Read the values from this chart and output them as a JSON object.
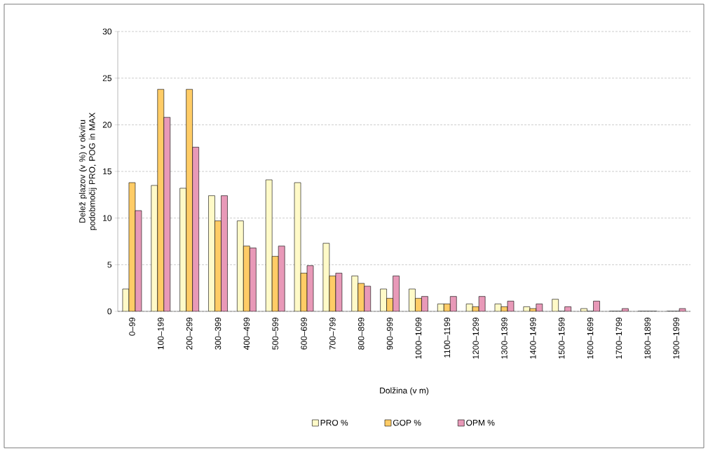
{
  "chart_data": {
    "type": "bar",
    "xlabel": "Dolžina (v m)",
    "ylabel": "Delež plazov (v %) v okviru podobmočij PRO, POG in MAX",
    "categories": [
      "0–99",
      "100–199",
      "200–299",
      "300–399",
      "400–499",
      "500–599",
      "600–699",
      "700–799",
      "800–899",
      "900–999",
      "1000–1099",
      "1100–1199",
      "1200–1299",
      "1300–1399",
      "1400–1499",
      "1500–1599",
      "1600–1699",
      "1700–1799",
      "1800–1899",
      "1900–1999"
    ],
    "series": [
      {
        "name": "PRO %",
        "color": "#fffac8",
        "values": [
          2.4,
          13.5,
          13.2,
          12.4,
          9.7,
          14.1,
          13.8,
          7.3,
          3.8,
          2.4,
          2.4,
          0.8,
          0.8,
          0.8,
          0.5,
          1.3,
          0.3,
          0,
          0,
          0
        ]
      },
      {
        "name": "GOP %",
        "color": "#ffcc66",
        "values": [
          13.8,
          23.8,
          23.8,
          9.7,
          7.0,
          5.9,
          4.1,
          3.8,
          3.0,
          1.4,
          1.4,
          0.8,
          0.5,
          0.5,
          0.3,
          0,
          0,
          0,
          0,
          0
        ]
      },
      {
        "name": "OPM %",
        "color": "#e899b8",
        "values": [
          10.8,
          20.8,
          17.6,
          12.4,
          6.8,
          7.0,
          4.9,
          4.1,
          2.7,
          3.8,
          1.6,
          1.6,
          1.6,
          1.1,
          0.8,
          0.5,
          1.1,
          0.3,
          0,
          0.3
        ]
      }
    ],
    "ylim": [
      0,
      30
    ],
    "yticks": [
      0,
      5,
      10,
      15,
      20,
      25,
      30
    ],
    "grid": "y",
    "legend": "bottom"
  }
}
